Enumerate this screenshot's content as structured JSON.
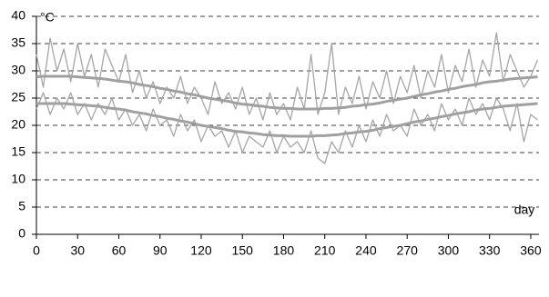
{
  "chart_data": {
    "type": "line",
    "y_label": "°C",
    "x_label": "day",
    "x": [
      0,
      5,
      10,
      15,
      20,
      25,
      30,
      35,
      40,
      45,
      50,
      55,
      60,
      65,
      70,
      75,
      80,
      85,
      90,
      95,
      100,
      105,
      110,
      115,
      120,
      125,
      130,
      135,
      140,
      145,
      150,
      155,
      160,
      165,
      170,
      175,
      180,
      185,
      190,
      195,
      200,
      205,
      210,
      215,
      220,
      225,
      230,
      235,
      240,
      245,
      250,
      255,
      260,
      265,
      270,
      275,
      280,
      285,
      290,
      295,
      300,
      305,
      310,
      315,
      320,
      325,
      330,
      335,
      340,
      345,
      350,
      355,
      360,
      365
    ],
    "series": [
      {
        "color": "#a6a6a6",
        "width": 1.3,
        "values": [
          33,
          27,
          36,
          30,
          34,
          28,
          35,
          29,
          33,
          27,
          34,
          31,
          28,
          33,
          26,
          30,
          25,
          28,
          24,
          27,
          25,
          29,
          24,
          27,
          25,
          22,
          28,
          24,
          26,
          23,
          27,
          22,
          25,
          21,
          26,
          22,
          24,
          21,
          27,
          23,
          33,
          22,
          26,
          35,
          22,
          27,
          24,
          29,
          23,
          28,
          25,
          30,
          24,
          29,
          26,
          31,
          25,
          30,
          27,
          33,
          26,
          31,
          28,
          34,
          27,
          32,
          29,
          37,
          28,
          33,
          30,
          27,
          29,
          32
        ]
      },
      {
        "color": "#a6a6a6",
        "width": 1.3,
        "values": [
          23,
          26,
          22,
          25,
          23,
          26,
          22,
          24,
          21,
          24,
          22,
          25,
          21,
          23,
          20,
          22,
          19,
          23,
          20,
          21,
          18,
          22,
          19,
          21,
          17,
          20,
          18,
          19,
          16,
          19,
          15,
          18,
          17,
          16,
          19,
          15,
          18,
          16,
          17,
          15,
          19,
          14,
          13,
          17,
          15,
          19,
          16,
          20,
          17,
          21,
          18,
          22,
          19,
          20,
          18,
          23,
          20,
          22,
          19,
          24,
          21,
          23,
          20,
          25,
          22,
          24,
          21,
          25,
          23,
          19,
          24,
          17,
          22,
          21
        ]
      },
      {
        "color": "#a0a0a0",
        "width": 3,
        "values": [
          28.9,
          29.0,
          29.0,
          29.0,
          29.0,
          29.0,
          28.9,
          28.8,
          28.7,
          28.6,
          28.5,
          28.3,
          28.1,
          28.0,
          27.8,
          27.5,
          27.3,
          27.1,
          26.8,
          26.6,
          26.3,
          26.1,
          25.8,
          25.6,
          25.3,
          25.0,
          24.8,
          24.6,
          24.4,
          24.1,
          23.9,
          23.8,
          23.6,
          23.5,
          23.3,
          23.2,
          23.1,
          23.1,
          23.0,
          23.0,
          23.0,
          23.0,
          23.1,
          23.1,
          23.2,
          23.3,
          23.5,
          23.6,
          23.8,
          23.9,
          24.1,
          24.4,
          24.6,
          24.8,
          25.0,
          25.3,
          25.6,
          25.8,
          26.1,
          26.3,
          26.6,
          26.8,
          27.1,
          27.3,
          27.5,
          27.8,
          28.0,
          28.1,
          28.3,
          28.5,
          28.6,
          28.7,
          28.8,
          28.9
        ]
      },
      {
        "color": "#a0a0a0",
        "width": 3,
        "values": [
          24.0,
          24.0,
          24.0,
          24.0,
          24.0,
          23.9,
          23.8,
          23.7,
          23.6,
          23.5,
          23.3,
          23.1,
          23.0,
          22.8,
          22.5,
          22.3,
          22.1,
          21.8,
          21.6,
          21.3,
          21.1,
          20.8,
          20.6,
          20.3,
          20.0,
          19.8,
          19.6,
          19.4,
          19.1,
          18.9,
          18.8,
          18.6,
          18.5,
          18.3,
          18.2,
          18.1,
          18.1,
          18.0,
          18.0,
          18.0,
          18.0,
          18.1,
          18.1,
          18.2,
          18.3,
          18.5,
          18.6,
          18.8,
          18.9,
          19.1,
          19.4,
          19.6,
          19.8,
          20.0,
          20.3,
          20.6,
          20.8,
          21.1,
          21.3,
          21.6,
          21.8,
          22.1,
          22.3,
          22.5,
          22.8,
          23.0,
          23.1,
          23.3,
          23.5,
          23.6,
          23.7,
          23.8,
          23.9,
          24.0
        ]
      }
    ],
    "xlim": [
      0,
      366
    ],
    "ylim": [
      0,
      40
    ],
    "xticks": [
      0,
      30,
      60,
      90,
      120,
      150,
      180,
      210,
      240,
      270,
      300,
      330,
      360
    ],
    "yticks": [
      0,
      5,
      10,
      15,
      20,
      25,
      30,
      35,
      40
    ],
    "grid": true
  }
}
